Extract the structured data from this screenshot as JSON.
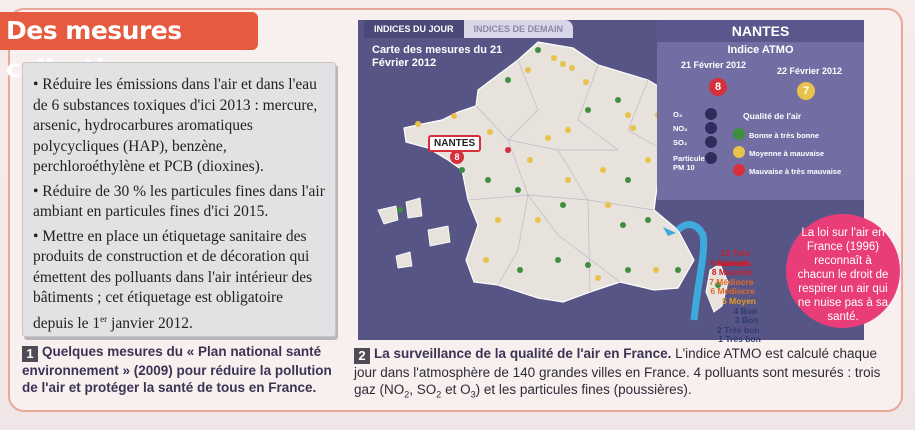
{
  "section_title": "Des mesures collectives",
  "text_box": {
    "bullets": [
      "• Réduire les émissions dans l'air et dans l'eau de 6 substances toxiques d'ici 2013 : mercure, arsenic, hydrocarbures aromatiques polycycliques (HAP), benzène, perchloroéthylène et PCB (dioxines).",
      "• Réduire de 30 % les particules fines dans l'air ambiant en particules fines d'ici 2015.",
      "• Mettre en place un étiquetage sanitaire des produits de construction et de décoration qui émettent des polluants dans l'air intérieur des bâtiments ; cet étiquetage est obligatoire depuis le "
    ],
    "last_date_sup": "er",
    "last_date_tail": " janvier 2012."
  },
  "caption1": {
    "num": "1",
    "text": "Quelques mesures du « Plan national santé environnement » (2009) pour réduire la pollution de l'air et protéger la santé de tous en France."
  },
  "caption2": {
    "num": "2",
    "bold": "La surveillance de la qualité de l'air en France.",
    "text": " L'indice ATMO est calculé chaque jour dans l'atmosphère de 140 grandes villes en France. 4 polluants sont mesurés : trois gaz (NO",
    "no2_sub": "2",
    "so2": ", SO",
    "so2_sub": "2",
    "o3": " et O",
    "o3_sub": "3",
    "tail": ") et les particules fines (poussières)."
  },
  "map": {
    "tab_active": "INDICES DU JOUR",
    "tab_inactive": "INDICES DE DEMAIN",
    "title": "Carte des mesures du 21 Février 2012",
    "city_label": "NANTES",
    "city_index": "8"
  },
  "nantes": {
    "title": "NANTES",
    "atmo_title": "Indice ATMO",
    "date1": "21 Février 2012",
    "date2": "22 Février 2012",
    "index1": "8",
    "index2": "7",
    "index1_color": "#d6303c",
    "index2_color": "#e8c24a"
  },
  "legend": {
    "pollutants": [
      "O₃",
      "NO₂",
      "SO₂",
      "Particules PM 10"
    ],
    "quality_title": "Qualité de l'air",
    "quality": [
      {
        "label": "Bonne à très bonne",
        "color": "#3d8f3d"
      },
      {
        "label": "Moyenne à mauvaise",
        "color": "#e8c24a"
      },
      {
        "label": "Mauvaise à très mauvaise",
        "color": "#d6303c"
      }
    ]
  },
  "scale": [
    {
      "label": "10 Très mauvais",
      "color": "#c7202f"
    },
    {
      "label": "9 Mauvais",
      "color": "#c7202f"
    },
    {
      "label": "8 Mauvais",
      "color": "#c7202f"
    },
    {
      "label": "7 Médiocre",
      "color": "#e56a2a"
    },
    {
      "label": "6 Médiocre",
      "color": "#e56a2a"
    },
    {
      "label": "5 Moyen",
      "color": "#e59a2a"
    },
    {
      "label": "4 Bon",
      "color": "#2f3b6e"
    },
    {
      "label": "3 Bon",
      "color": "#2f3b6e"
    },
    {
      "label": "2 Très bon",
      "color": "#2f3b6e"
    },
    {
      "label": "1 Très bon",
      "color": "#2f3b6e"
    }
  ],
  "law": "La loi sur l'air en France (1996) reconnaît à chacun le droit de respirer un air qui ne nuise pas à sa santé."
}
